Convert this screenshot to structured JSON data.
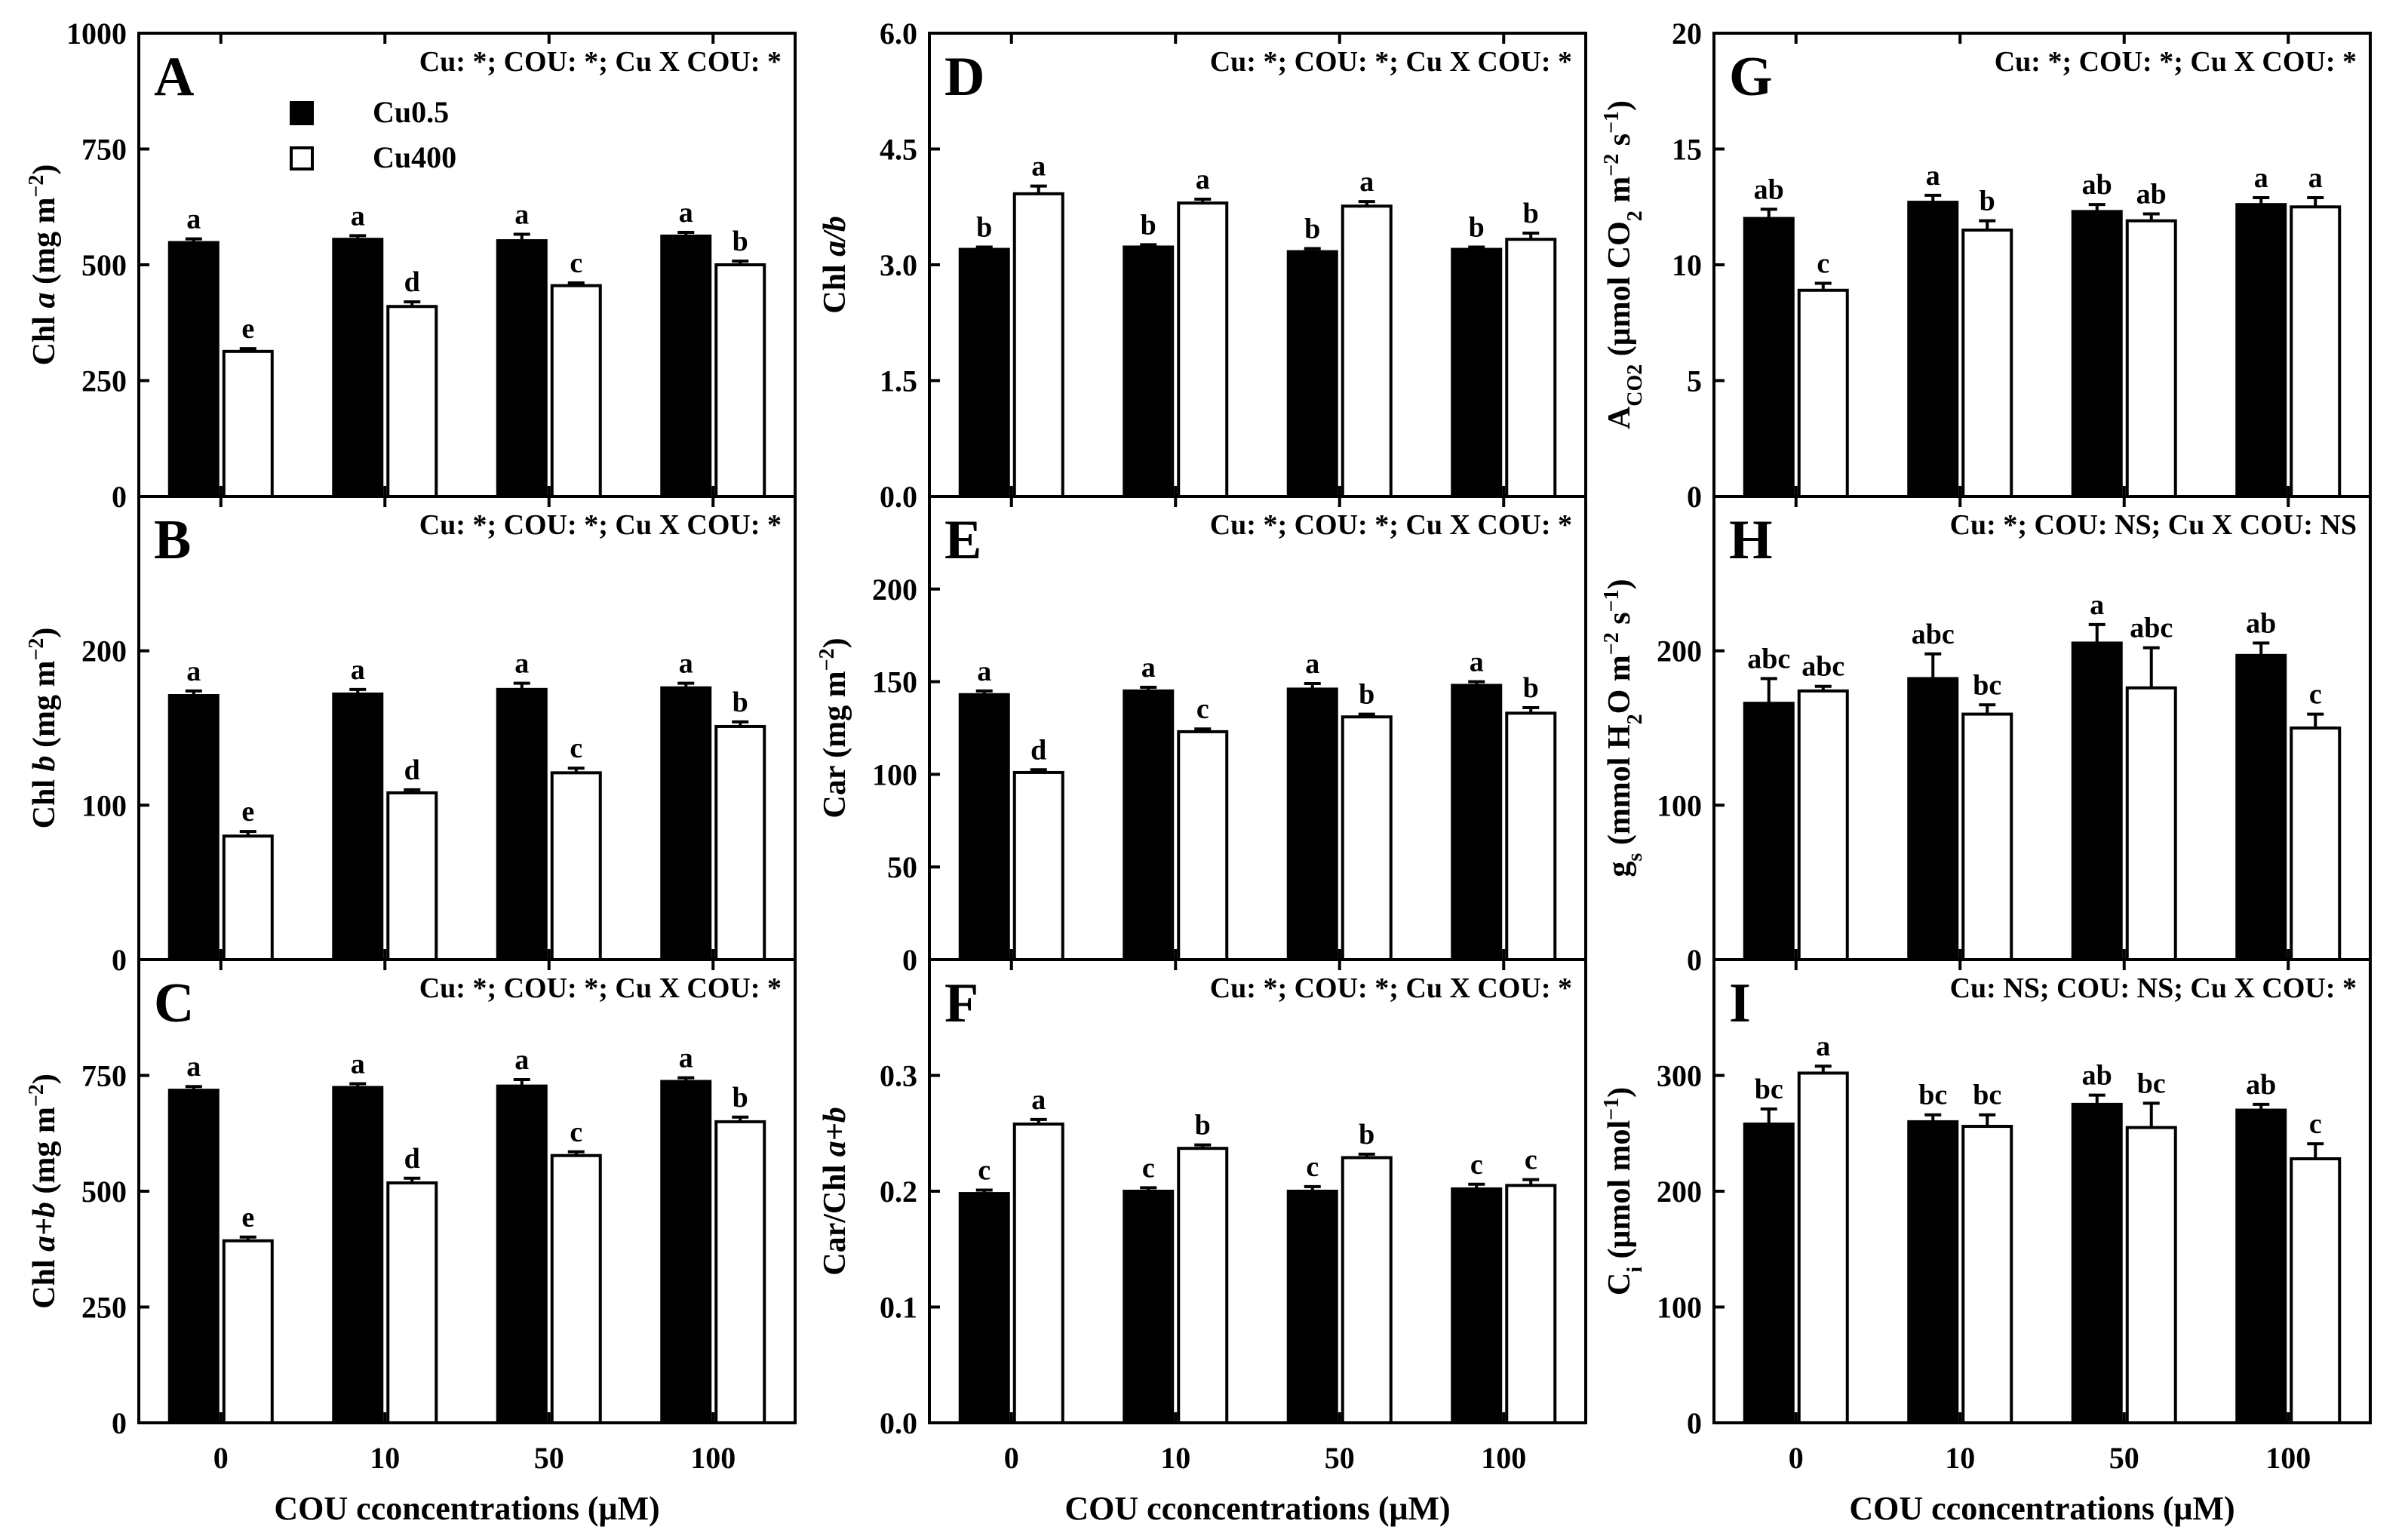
{
  "figure": {
    "xlabel": "COU cconcentrations (μM)",
    "legend": {
      "cu05": "Cu0.5",
      "cu400": "Cu400"
    },
    "colors": {
      "cu05": "#000000",
      "cu400": "#ffffff"
    }
  },
  "chart_data": [
    {
      "id": "A",
      "type": "bar",
      "panel_letter": "A",
      "stats": "Cu: *; COU: *; Cu X COU: *",
      "ylabel_parts": [
        {
          "t": "Chl "
        },
        {
          "t": "a",
          "i": true
        },
        {
          "t": " (mg m"
        },
        {
          "t": "−2",
          "sup": true
        },
        {
          "t": ")"
        }
      ],
      "ylim": [
        0,
        1000
      ],
      "yticks": [
        0,
        250,
        500,
        750,
        1000
      ],
      "ytick_labels": [
        "0",
        "250",
        "500",
        "750",
        "1000"
      ],
      "categories": [
        "0",
        "10",
        "50",
        "100"
      ],
      "xlabel": "",
      "series": [
        {
          "name": "Cu0.5",
          "values": [
            548,
            555,
            552,
            562
          ],
          "errors": [
            8,
            8,
            14,
            8
          ],
          "letters": [
            "a",
            "a",
            "a",
            "a"
          ]
        },
        {
          "name": "Cu400",
          "values": [
            313,
            410,
            455,
            500
          ],
          "errors": [
            6,
            10,
            6,
            8
          ],
          "letters": [
            "e",
            "d",
            "c",
            "b"
          ]
        }
      ]
    },
    {
      "id": "B",
      "type": "bar",
      "panel_letter": "B",
      "stats": "Cu: *; COU: *; Cu X COU: *",
      "ylabel_parts": [
        {
          "t": "Chl "
        },
        {
          "t": "b",
          "i": true
        },
        {
          "t": " (mg m"
        },
        {
          "t": "−2",
          "sup": true
        },
        {
          "t": ")"
        }
      ],
      "ylim": [
        0,
        300
      ],
      "yticks": [
        0,
        100,
        200
      ],
      "ytick_labels": [
        "0",
        "100",
        "200"
      ],
      "categories": [
        "0",
        "10",
        "50",
        "100"
      ],
      "xlabel": "",
      "series": [
        {
          "name": "Cu0.5",
          "values": [
            171,
            172,
            175,
            176
          ],
          "errors": [
            3,
            3,
            4,
            3
          ],
          "letters": [
            "a",
            "a",
            "a",
            "a"
          ]
        },
        {
          "name": "Cu400",
          "values": [
            80,
            108,
            121,
            151
          ],
          "errors": [
            3,
            2,
            3,
            3
          ],
          "letters": [
            "e",
            "d",
            "c",
            "b"
          ]
        }
      ]
    },
    {
      "id": "C",
      "type": "bar",
      "panel_letter": "C",
      "stats": "Cu: *; COU: *; Cu X COU: *",
      "ylabel_parts": [
        {
          "t": "Chl "
        },
        {
          "t": "a+b",
          "i": true
        },
        {
          "t": " (mg m"
        },
        {
          "t": "−2",
          "sup": true
        },
        {
          "t": ")"
        }
      ],
      "ylim": [
        0,
        1000
      ],
      "yticks": [
        0,
        250,
        500,
        750
      ],
      "ytick_labels": [
        "0",
        "250",
        "500",
        "750"
      ],
      "categories": [
        "0",
        "10",
        "50",
        "100"
      ],
      "xlabel": "COU cconcentrations (μM)",
      "series": [
        {
          "name": "Cu0.5",
          "values": [
            718,
            724,
            727,
            737
          ],
          "errors": [
            8,
            8,
            14,
            8
          ],
          "letters": [
            "a",
            "a",
            "a",
            "a"
          ]
        },
        {
          "name": "Cu400",
          "values": [
            393,
            518,
            577,
            650
          ],
          "errors": [
            8,
            10,
            8,
            10
          ],
          "letters": [
            "e",
            "d",
            "c",
            "b"
          ]
        }
      ]
    },
    {
      "id": "D",
      "type": "bar",
      "panel_letter": "D",
      "stats": "Cu: *; COU: *; Cu X COU: *",
      "ylabel_parts": [
        {
          "t": "Chl "
        },
        {
          "t": "a/b",
          "i": true
        }
      ],
      "ylim": [
        0,
        6
      ],
      "yticks": [
        0,
        1.5,
        3,
        4.5,
        6
      ],
      "ytick_labels": [
        "0.0",
        "1.5",
        "3.0",
        "4.5",
        "6.0"
      ],
      "categories": [
        "0",
        "10",
        "50",
        "100"
      ],
      "xlabel": "",
      "series": [
        {
          "name": "Cu0.5",
          "values": [
            3.2,
            3.23,
            3.17,
            3.2
          ],
          "errors": [
            0.03,
            0.03,
            0.04,
            0.03
          ],
          "letters": [
            "b",
            "b",
            "b",
            "b"
          ]
        },
        {
          "name": "Cu400",
          "values": [
            3.92,
            3.8,
            3.76,
            3.33
          ],
          "errors": [
            0.1,
            0.05,
            0.06,
            0.08
          ],
          "letters": [
            "a",
            "a",
            "a",
            "b"
          ]
        }
      ]
    },
    {
      "id": "E",
      "type": "bar",
      "panel_letter": "E",
      "stats": "Cu: *; COU: *; Cu X COU: *",
      "ylabel_parts": [
        {
          "t": "Car (mg m"
        },
        {
          "t": "−2",
          "sup": true
        },
        {
          "t": ")"
        }
      ],
      "ylim": [
        0,
        250
      ],
      "yticks": [
        0,
        50,
        100,
        150,
        200
      ],
      "ytick_labels": [
        "0",
        "50",
        "100",
        "150",
        "200"
      ],
      "categories": [
        "0",
        "10",
        "50",
        "100"
      ],
      "xlabel": "",
      "series": [
        {
          "name": "Cu0.5",
          "values": [
            143,
            145,
            146,
            148
          ],
          "errors": [
            2,
            2,
            3,
            2
          ],
          "letters": [
            "a",
            "a",
            "a",
            "a"
          ]
        },
        {
          "name": "Cu400",
          "values": [
            101,
            123,
            131,
            133
          ],
          "errors": [
            1.5,
            1.5,
            1.5,
            3
          ],
          "letters": [
            "d",
            "c",
            "b",
            "b"
          ]
        }
      ]
    },
    {
      "id": "F",
      "type": "bar",
      "panel_letter": "F",
      "stats": "Cu: *; COU: *; Cu X COU: *",
      "ylabel_parts": [
        {
          "t": "Car/Chl "
        },
        {
          "t": "a+b",
          "i": true
        }
      ],
      "ylim": [
        0,
        0.4
      ],
      "yticks": [
        0,
        0.1,
        0.2,
        0.3
      ],
      "ytick_labels": [
        "0.0",
        "0.1",
        "0.2",
        "0.3"
      ],
      "categories": [
        "0",
        "10",
        "50",
        "100"
      ],
      "xlabel": "COU cconcentrations (μM)",
      "series": [
        {
          "name": "Cu0.5",
          "values": [
            0.198,
            0.2,
            0.2,
            0.202
          ],
          "errors": [
            0.003,
            0.003,
            0.004,
            0.004
          ],
          "letters": [
            "c",
            "c",
            "c",
            "c"
          ]
        },
        {
          "name": "Cu400",
          "values": [
            0.258,
            0.237,
            0.229,
            0.205
          ],
          "errors": [
            0.004,
            0.003,
            0.003,
            0.005
          ],
          "letters": [
            "a",
            "b",
            "b",
            "c"
          ]
        }
      ]
    },
    {
      "id": "G",
      "type": "bar",
      "panel_letter": "G",
      "stats": "Cu: *; COU: *; Cu X COU: *",
      "ylabel_parts": [
        {
          "t": "A"
        },
        {
          "t": "CO2",
          "sub": true
        },
        {
          "t": " (μmol CO"
        },
        {
          "t": "2",
          "sub": true
        },
        {
          "t": " m"
        },
        {
          "t": "−2",
          "sup": true
        },
        {
          "t": " s"
        },
        {
          "t": "−1",
          "sup": true
        },
        {
          "t": ")"
        }
      ],
      "ylim": [
        0,
        20
      ],
      "yticks": [
        0,
        5,
        10,
        15,
        20
      ],
      "ytick_labels": [
        "0",
        "5",
        "10",
        "15",
        "20"
      ],
      "categories": [
        "0",
        "10",
        "50",
        "100"
      ],
      "xlabel": "",
      "series": [
        {
          "name": "Cu0.5",
          "values": [
            12,
            12.7,
            12.3,
            12.6
          ],
          "errors": [
            0.4,
            0.3,
            0.3,
            0.3
          ],
          "letters": [
            "ab",
            "a",
            "ab",
            "a"
          ]
        },
        {
          "name": "Cu400",
          "values": [
            8.9,
            11.5,
            11.9,
            12.5
          ],
          "errors": [
            0.3,
            0.4,
            0.3,
            0.4
          ],
          "letters": [
            "c",
            "b",
            "ab",
            "a"
          ]
        }
      ]
    },
    {
      "id": "H",
      "type": "bar",
      "panel_letter": "H",
      "stats": "Cu: *; COU: NS; Cu X COU: NS",
      "ylabel_parts": [
        {
          "t": "g"
        },
        {
          "t": "s",
          "sub": true
        },
        {
          "t": " (mmol H"
        },
        {
          "t": "2",
          "sub": true
        },
        {
          "t": "O m"
        },
        {
          "t": "−2",
          "sup": true
        },
        {
          "t": " s"
        },
        {
          "t": "−1",
          "sup": true
        },
        {
          "t": ")"
        }
      ],
      "ylim": [
        0,
        300
      ],
      "yticks": [
        0,
        100,
        200
      ],
      "ytick_labels": [
        "0",
        "100",
        "200"
      ],
      "categories": [
        "0",
        "10",
        "50",
        "100"
      ],
      "xlabel": "",
      "series": [
        {
          "name": "Cu0.5",
          "values": [
            166,
            182,
            205,
            197
          ],
          "errors": [
            16,
            16,
            12,
            8
          ],
          "letters": [
            "abc",
            "abc",
            "a",
            "ab"
          ]
        },
        {
          "name": "Cu400",
          "values": [
            174,
            159,
            176,
            150
          ],
          "errors": [
            3,
            6,
            26,
            9
          ],
          "letters": [
            "abc",
            "bc",
            "abc",
            "c"
          ]
        }
      ]
    },
    {
      "id": "I",
      "type": "bar",
      "panel_letter": "I",
      "stats": "Cu: NS; COU: NS; Cu X COU: *",
      "ylabel_parts": [
        {
          "t": "C"
        },
        {
          "t": "i",
          "sub": true
        },
        {
          "t": " (μmol mol"
        },
        {
          "t": "−1",
          "sup": true
        },
        {
          "t": ")"
        }
      ],
      "ylim": [
        0,
        400
      ],
      "yticks": [
        0,
        100,
        200,
        300
      ],
      "ytick_labels": [
        "0",
        "100",
        "200",
        "300"
      ],
      "categories": [
        "0",
        "10",
        "50",
        "100"
      ],
      "xlabel": "COU cconcentrations (μM)",
      "series": [
        {
          "name": "Cu0.5",
          "values": [
            258,
            260,
            275,
            270
          ],
          "errors": [
            13,
            6,
            8,
            5
          ],
          "letters": [
            "bc",
            "bc",
            "ab",
            "ab"
          ]
        },
        {
          "name": "Cu400",
          "values": [
            302,
            256,
            255,
            228
          ],
          "errors": [
            6,
            10,
            21,
            13
          ],
          "letters": [
            "a",
            "bc",
            "bc",
            "c"
          ]
        }
      ]
    }
  ]
}
